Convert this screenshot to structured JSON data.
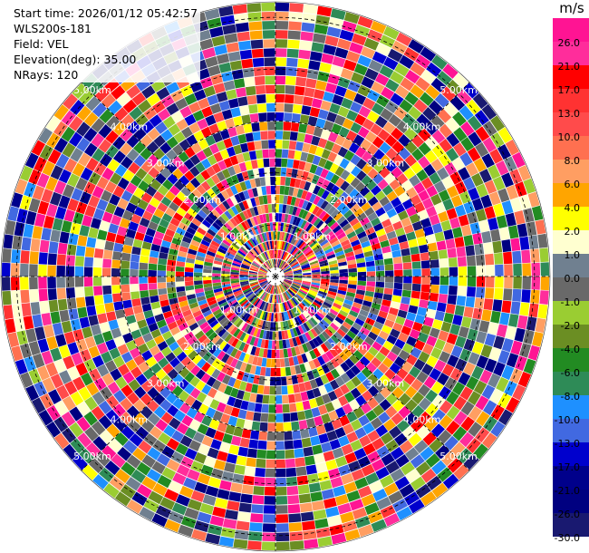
{
  "header": {
    "start_time": "Start time: 2026/01/12 05:42:57",
    "station": "WLS200s-181",
    "field": "Field: VEL",
    "elevation": "Elevation(deg): 35.00",
    "nrays": "NRays: 120"
  },
  "chart_data": {
    "type": "heatmap",
    "projection": "polar-ppi",
    "rays": 120,
    "colorbar": {
      "unit": "m/s",
      "ticks": [
        "26.0",
        "21.0",
        "17.0",
        "13.0",
        "10.0",
        "8.0",
        "6.0",
        "4.0",
        "2.0",
        "1.0",
        "0.0",
        "-1.0",
        "-2.0",
        "-4.0",
        "-6.0",
        "-8.0",
        "-10.0",
        "-13.0",
        "-17.0",
        "-21.0",
        "-26.0",
        "-30.0"
      ],
      "colors": [
        "#ff1493",
        "#ff2d9b",
        "#ff0000",
        "#ff3232",
        "#ff4b4b",
        "#ff7050",
        "#ff9e62",
        "#ffa500",
        "#ffff00",
        "#ffffd0",
        "#708090",
        "#696969",
        "#9acd32",
        "#6b8e23",
        "#228b22",
        "#2e8b57",
        "#1e90ff",
        "#4169e1",
        "#0000cd",
        "#00008b",
        "#000080",
        "#191970"
      ]
    },
    "range_rings": [
      {
        "km": 1,
        "label": "1.00km"
      },
      {
        "km": 2,
        "label": "2.00km"
      },
      {
        "km": 3,
        "label": "3.00km"
      },
      {
        "km": 4,
        "label": "4.00km"
      },
      {
        "km": 5,
        "label": "5.00km"
      }
    ]
  }
}
